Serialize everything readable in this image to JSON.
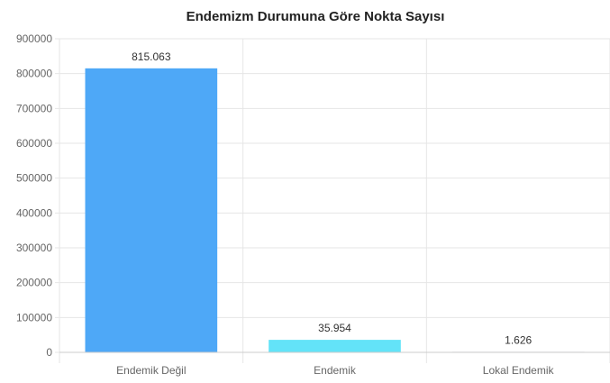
{
  "chart_data": {
    "type": "bar",
    "title": "Endemizm Durumuna Göre Nokta Sayısı",
    "categories": [
      "Endemik Değil",
      "Endemik",
      "Lokal Endemik"
    ],
    "values": [
      815063,
      35954,
      1626
    ],
    "data_labels": [
      "815.063",
      "35.954",
      "1.626"
    ],
    "colors": [
      "#4ea8f7",
      "#63e3f8",
      "#cfd8dc"
    ],
    "ylim": [
      0,
      900000
    ],
    "yticks": [
      "0",
      "100000",
      "200000",
      "300000",
      "400000",
      "500000",
      "600000",
      "700000",
      "800000",
      "900000"
    ],
    "grid": true,
    "legend": "none"
  }
}
